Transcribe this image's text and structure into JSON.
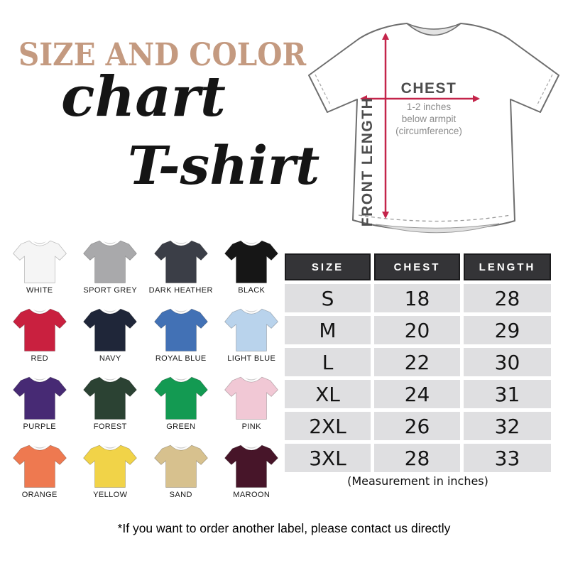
{
  "title": {
    "line1": "SIZE AND COLOR",
    "line2": "chart",
    "product": "T-shirt",
    "accent_color": "#c49a80"
  },
  "diagram": {
    "chest_label": "CHEST",
    "chest_note_lines": [
      "1-2 inches",
      "below armpit",
      "(circumference)"
    ],
    "front_length_label": "FRONT LENGTH",
    "arrow_color": "#c4244a"
  },
  "color_swatches": [
    {
      "name": "WHITE",
      "hex": "#f5f5f5"
    },
    {
      "name": "SPORT GREY",
      "hex": "#a9a9ab"
    },
    {
      "name": "DARK HEATHER",
      "hex": "#3b3e47"
    },
    {
      "name": "BLACK",
      "hex": "#161616"
    },
    {
      "name": "RED",
      "hex": "#c9203f"
    },
    {
      "name": "NAVY",
      "hex": "#1f2639"
    },
    {
      "name": "ROYAL BLUE",
      "hex": "#4271b5"
    },
    {
      "name": "LIGHT BLUE",
      "hex": "#b9d3ec"
    },
    {
      "name": "PURPLE",
      "hex": "#472a74"
    },
    {
      "name": "FOREST",
      "hex": "#2b4233"
    },
    {
      "name": "GREEN",
      "hex": "#139a52"
    },
    {
      "name": "PINK",
      "hex": "#f1c8d5"
    },
    {
      "name": "ORANGE",
      "hex": "#ee7950"
    },
    {
      "name": "YELLOW",
      "hex": "#f1d348"
    },
    {
      "name": "SAND",
      "hex": "#d7c18e"
    },
    {
      "name": "MAROON",
      "hex": "#471529"
    }
  ],
  "size_table": {
    "headers": [
      "SIZE",
      "CHEST",
      "LENGTH"
    ],
    "rows": [
      [
        "S",
        "18",
        "28"
      ],
      [
        "M",
        "20",
        "29"
      ],
      [
        "L",
        "22",
        "30"
      ],
      [
        "XL",
        "24",
        "31"
      ],
      [
        "2XL",
        "26",
        "32"
      ],
      [
        "3XL",
        "28",
        "33"
      ]
    ],
    "note": "(Measurement in inches)",
    "header_bg": "#343437",
    "cell_bg": "#dfdfe1"
  },
  "footer_note": "*If you want to order another label, please contact us directly"
}
